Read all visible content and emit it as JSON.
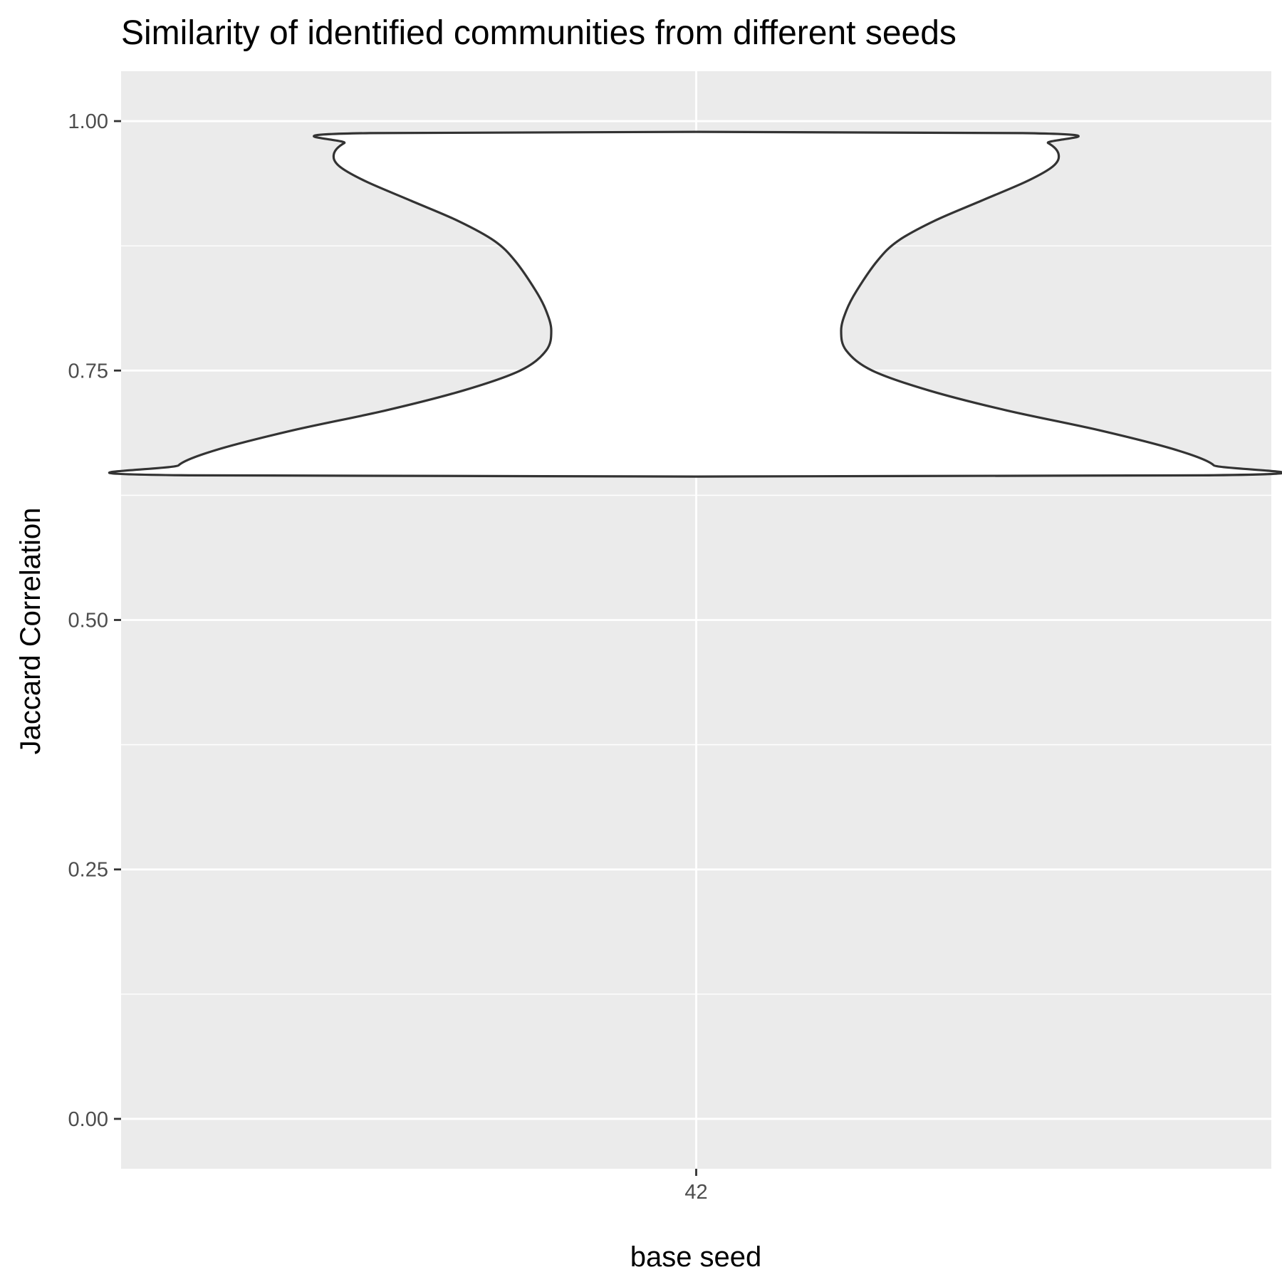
{
  "chart_data": {
    "type": "violin",
    "title": "Similarity of identified communities from different seeds",
    "xlabel": "base seed",
    "ylabel": "Jaccard Correlation",
    "categories": [
      "42"
    ],
    "ylim": [
      -0.05,
      1.05
    ],
    "yticks": [
      0.0,
      0.25,
      0.5,
      0.75,
      1.0
    ],
    "ytick_labels": [
      "0.00",
      "0.25",
      "0.50",
      "0.75",
      "1.00"
    ],
    "grid": true,
    "background": "#ebebeb",
    "grid_color": "#ffffff",
    "outline_color": "#333333",
    "fill_color": "#ffffff",
    "violin": {
      "category": "42",
      "min": 0.645,
      "max": 0.988,
      "density_profile": [
        {
          "y": 0.645,
          "width": 0.98
        },
        {
          "y": 0.655,
          "width": 1.0
        },
        {
          "y": 0.67,
          "width": 0.93
        },
        {
          "y": 0.69,
          "width": 0.78
        },
        {
          "y": 0.71,
          "width": 0.6
        },
        {
          "y": 0.73,
          "width": 0.45
        },
        {
          "y": 0.75,
          "width": 0.34
        },
        {
          "y": 0.77,
          "width": 0.29
        },
        {
          "y": 0.79,
          "width": 0.28
        },
        {
          "y": 0.81,
          "width": 0.29
        },
        {
          "y": 0.83,
          "width": 0.31
        },
        {
          "y": 0.86,
          "width": 0.35
        },
        {
          "y": 0.88,
          "width": 0.39
        },
        {
          "y": 0.9,
          "width": 0.46
        },
        {
          "y": 0.92,
          "width": 0.55
        },
        {
          "y": 0.94,
          "width": 0.64
        },
        {
          "y": 0.955,
          "width": 0.69
        },
        {
          "y": 0.967,
          "width": 0.7
        },
        {
          "y": 0.978,
          "width": 0.68
        },
        {
          "y": 0.988,
          "width": 0.63
        }
      ]
    }
  }
}
